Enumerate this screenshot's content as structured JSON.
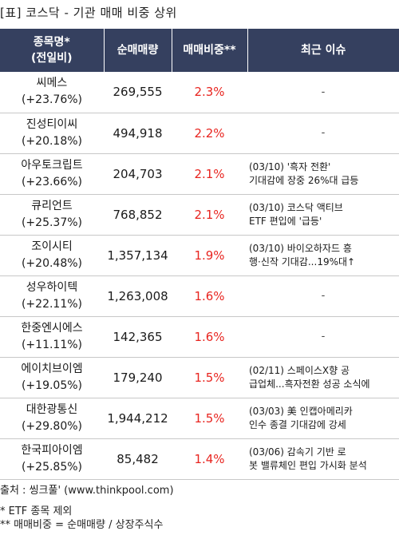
{
  "title": "[표] 코스닥 - 기관 매매 비중 상위",
  "columns": {
    "name_line1": "종목명*",
    "name_line2": "(전일비)",
    "volume": "순매매량",
    "ratio": "매매비중**",
    "issue": "최근 이슈"
  },
  "rows": [
    {
      "name": "씨메스",
      "change": "(+23.76%)",
      "volume": "269,555",
      "ratio": "2.3%",
      "issue_line1": "-",
      "issue_line2": ""
    },
    {
      "name": "진성티이씨",
      "change": "(+20.18%)",
      "volume": "494,918",
      "ratio": "2.2%",
      "issue_line1": "-",
      "issue_line2": ""
    },
    {
      "name": "아우토크립트",
      "change": "(+23.66%)",
      "volume": "204,703",
      "ratio": "2.1%",
      "issue_line1": "(03/10) '흑자 전환'",
      "issue_line2": "기대감에 장중 26%대 급등"
    },
    {
      "name": "큐리언트",
      "change": "(+25.37%)",
      "volume": "768,852",
      "ratio": "2.1%",
      "issue_line1": "(03/10) 코스닥 액티브",
      "issue_line2": "ETF 편입에 '급등'"
    },
    {
      "name": "조이시티",
      "change": "(+20.48%)",
      "volume": "1,357,134",
      "ratio": "1.9%",
      "issue_line1": "(03/10) 바이오하자드 흥",
      "issue_line2": "행·신작 기대감...19%대↑"
    },
    {
      "name": "성우하이텍",
      "change": "(+22.11%)",
      "volume": "1,263,008",
      "ratio": "1.6%",
      "issue_line1": "-",
      "issue_line2": ""
    },
    {
      "name": "한중엔시에스",
      "change": "(+11.11%)",
      "volume": "142,365",
      "ratio": "1.6%",
      "issue_line1": "-",
      "issue_line2": ""
    },
    {
      "name": "에이치브이엠",
      "change": "(+19.05%)",
      "volume": "179,240",
      "ratio": "1.5%",
      "issue_line1": "(02/11) 스페이스X향 공",
      "issue_line2": "급업체...흑자전환 성공 소식에"
    },
    {
      "name": "대한광통신",
      "change": "(+29.80%)",
      "volume": "1,944,212",
      "ratio": "1.5%",
      "issue_line1": "(03/03) 美 인캡아메리카",
      "issue_line2": "인수 종결 기대감에 강세"
    },
    {
      "name": "한국피아이엠",
      "change": "(+25.85%)",
      "volume": "85,482",
      "ratio": "1.4%",
      "issue_line1": "(03/06) 감속기 기반 로",
      "issue_line2": "봇 밸류체인 편입 가시화 분석"
    }
  ],
  "source": "출처 : 씽크풀' (www.thinkpool.com)",
  "note1": "* ETF 종목 제외",
  "note2": "** 매매비중 = 순매매량 / 상장주식수",
  "colors": {
    "header_bg": "#35405f",
    "ratio_red": "#e8241f"
  }
}
